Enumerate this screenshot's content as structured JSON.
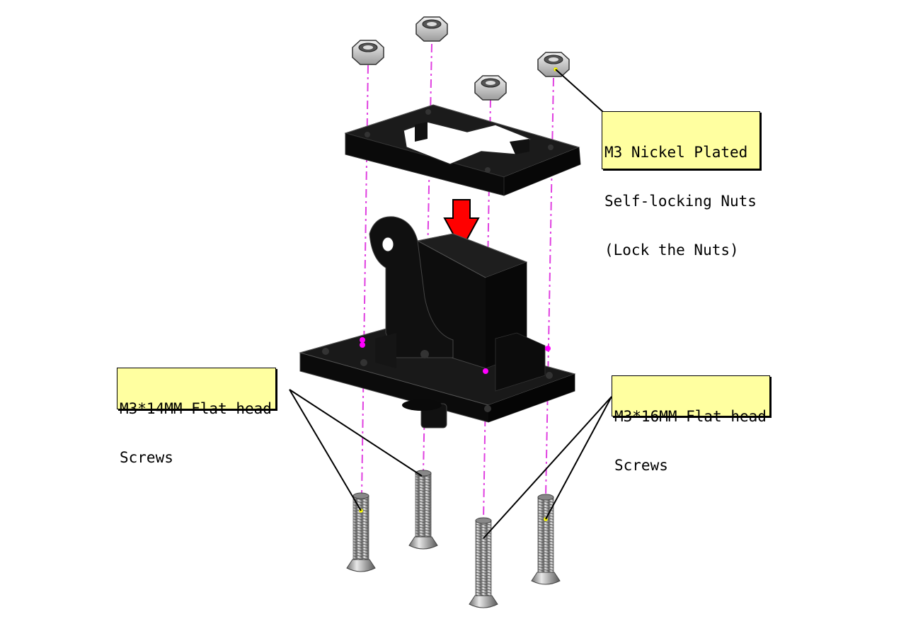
{
  "callouts": {
    "nuts": {
      "lines": [
        "M3 Nickel Plated",
        "Self-locking Nuts",
        "(Lock the Nuts)"
      ]
    },
    "screws14": {
      "lines": [
        "M3*14MM Flat-head",
        "Screws"
      ]
    },
    "screws16": {
      "lines": [
        "M3*16MM Flat-head",
        "Screws"
      ]
    }
  },
  "colors": {
    "axis_line": "#e040e0",
    "callout_fill": "#ffffa0",
    "part_dark": "#111111",
    "hardware_metal": "#b8b8b8",
    "arrow": "#ff0000"
  }
}
